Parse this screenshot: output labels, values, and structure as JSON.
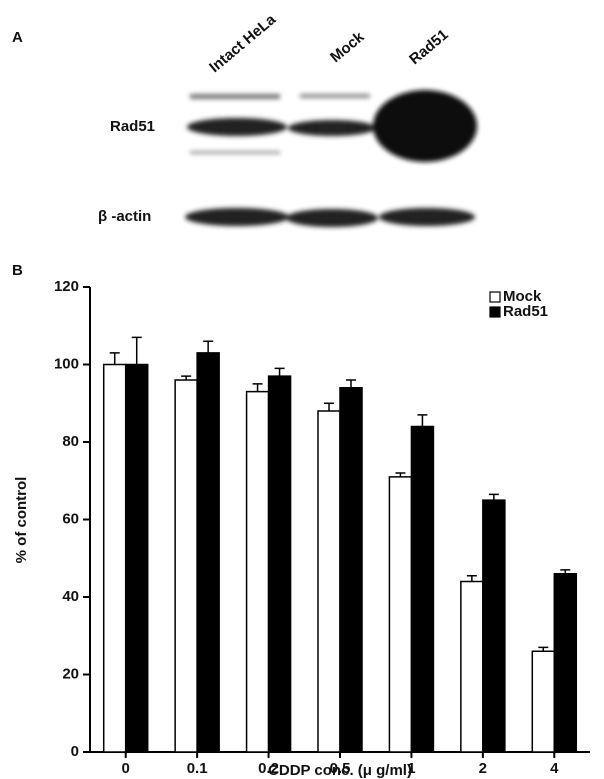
{
  "panel_a": {
    "label": "A",
    "lanes": [
      "Intact HeLa",
      "Mock",
      "Rad51"
    ],
    "rows": [
      "Rad51",
      "β -actin"
    ]
  },
  "chart_data": {
    "type": "bar",
    "panel_label": "B",
    "x_label": "CDDP conc. (μ g/ml)",
    "y_label": "% of control",
    "categories": [
      "0",
      "0.1",
      "0.2",
      "0.5",
      "1",
      "2",
      "4"
    ],
    "series": [
      {
        "name": "Mock",
        "color": "#ffffff",
        "values": [
          100,
          96,
          93,
          88,
          71,
          44,
          26
        ],
        "errors": [
          3,
          1,
          2,
          2,
          1,
          1.5,
          1
        ]
      },
      {
        "name": "Rad51",
        "color": "#000000",
        "values": [
          100,
          103,
          97,
          94,
          84,
          65,
          46
        ],
        "errors": [
          7,
          3,
          2,
          2,
          3,
          1.5,
          1
        ]
      }
    ],
    "ylim": [
      0,
      120
    ],
    "yticks": [
      0,
      20,
      40,
      60,
      80,
      100,
      120
    ],
    "legend": "upper right"
  }
}
